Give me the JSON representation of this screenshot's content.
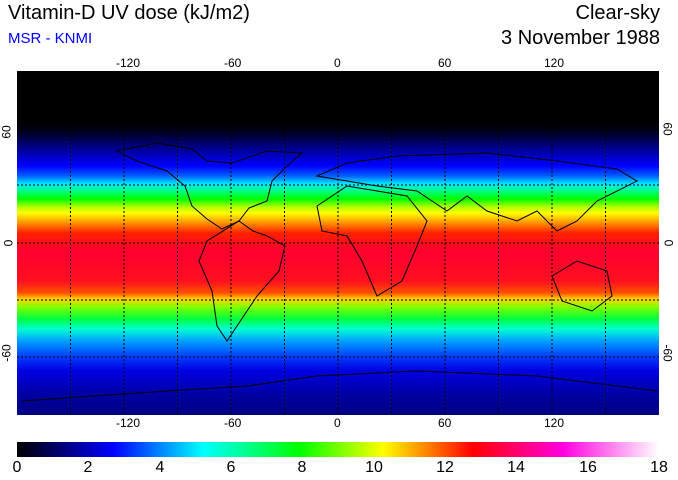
{
  "title": "Vitamin-D UV dose (kJ/m2)",
  "subtitle": "MSR - KNMI",
  "condition": "Clear-sky",
  "date": "3 November 1988",
  "lon_labels": [
    "-120",
    "-60",
    "0",
    "60",
    "120"
  ],
  "lat_labels": [
    "60",
    "0",
    "-60"
  ],
  "colorbar": {
    "labels": [
      "0",
      "2",
      "4",
      "6",
      "8",
      "10",
      "12",
      "14",
      "16",
      "18"
    ],
    "min": 0,
    "max": 18,
    "colors": [
      "#000000",
      "#0000ff",
      "#00ffff",
      "#00ff00",
      "#ffff00",
      "#ff0000",
      "#ff00e0",
      "#ffffff"
    ]
  }
}
